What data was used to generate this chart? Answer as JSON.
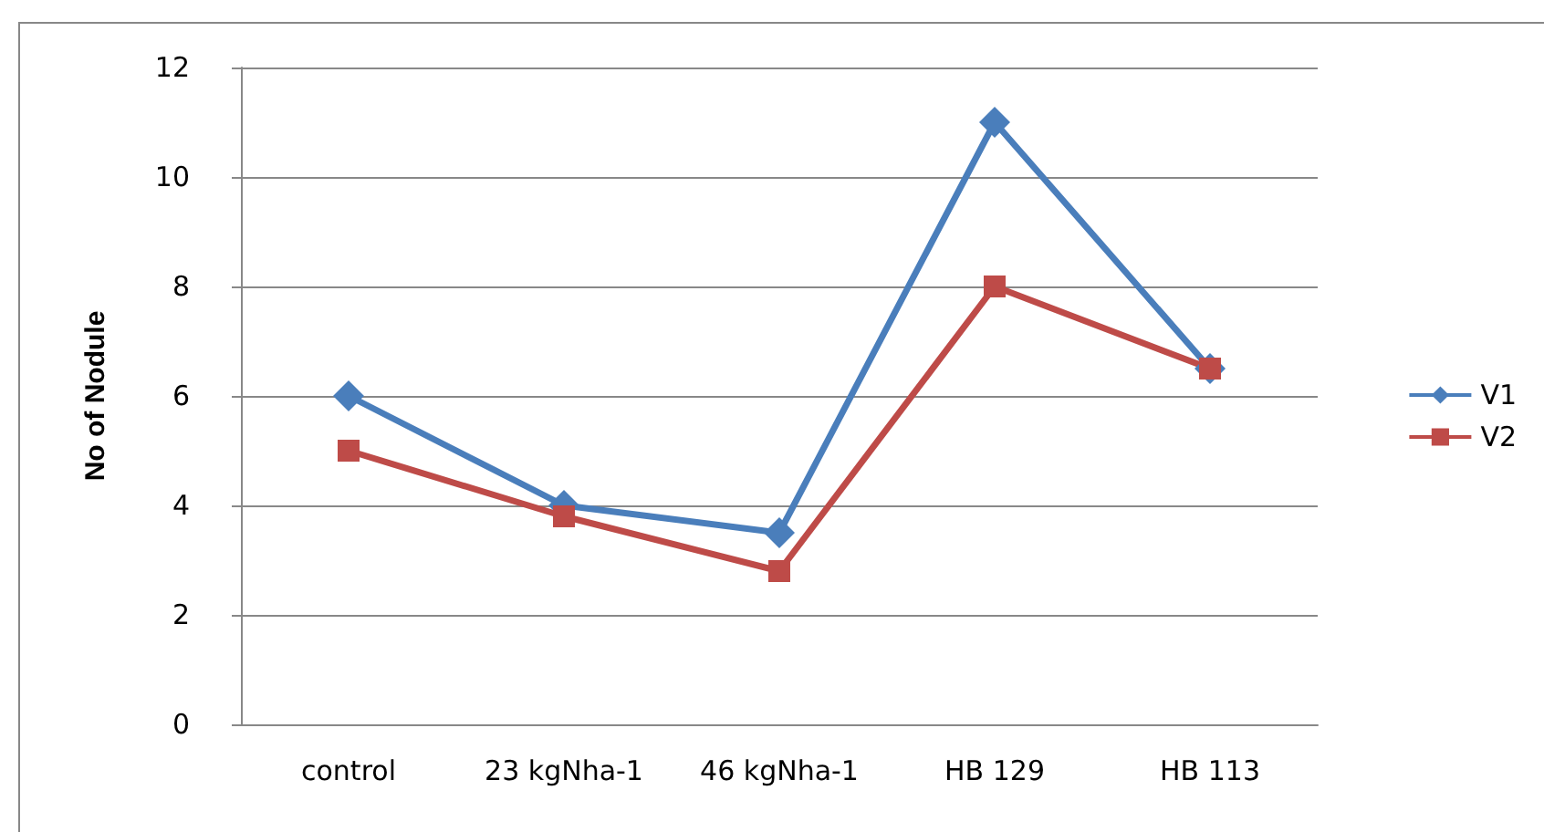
{
  "chart_data": {
    "type": "line",
    "ylabel": "No of Nodule",
    "categories": [
      "control",
      "23 kgNha-1",
      "46 kgNha-1",
      "HB 129",
      "HB 113"
    ],
    "series": [
      {
        "name": "V1",
        "color": "#4a7ebb",
        "marker": "diamond",
        "values": [
          6,
          4,
          3.5,
          11,
          6.5
        ]
      },
      {
        "name": "V2",
        "color": "#be4b48",
        "marker": "square",
        "values": [
          5,
          3.8,
          2.8,
          8,
          6.5
        ]
      }
    ],
    "ylim": [
      0,
      12
    ],
    "yticks": [
      0,
      2,
      4,
      6,
      8,
      10,
      12
    ],
    "grid": "y",
    "legend": "right",
    "line_style": "solid"
  }
}
